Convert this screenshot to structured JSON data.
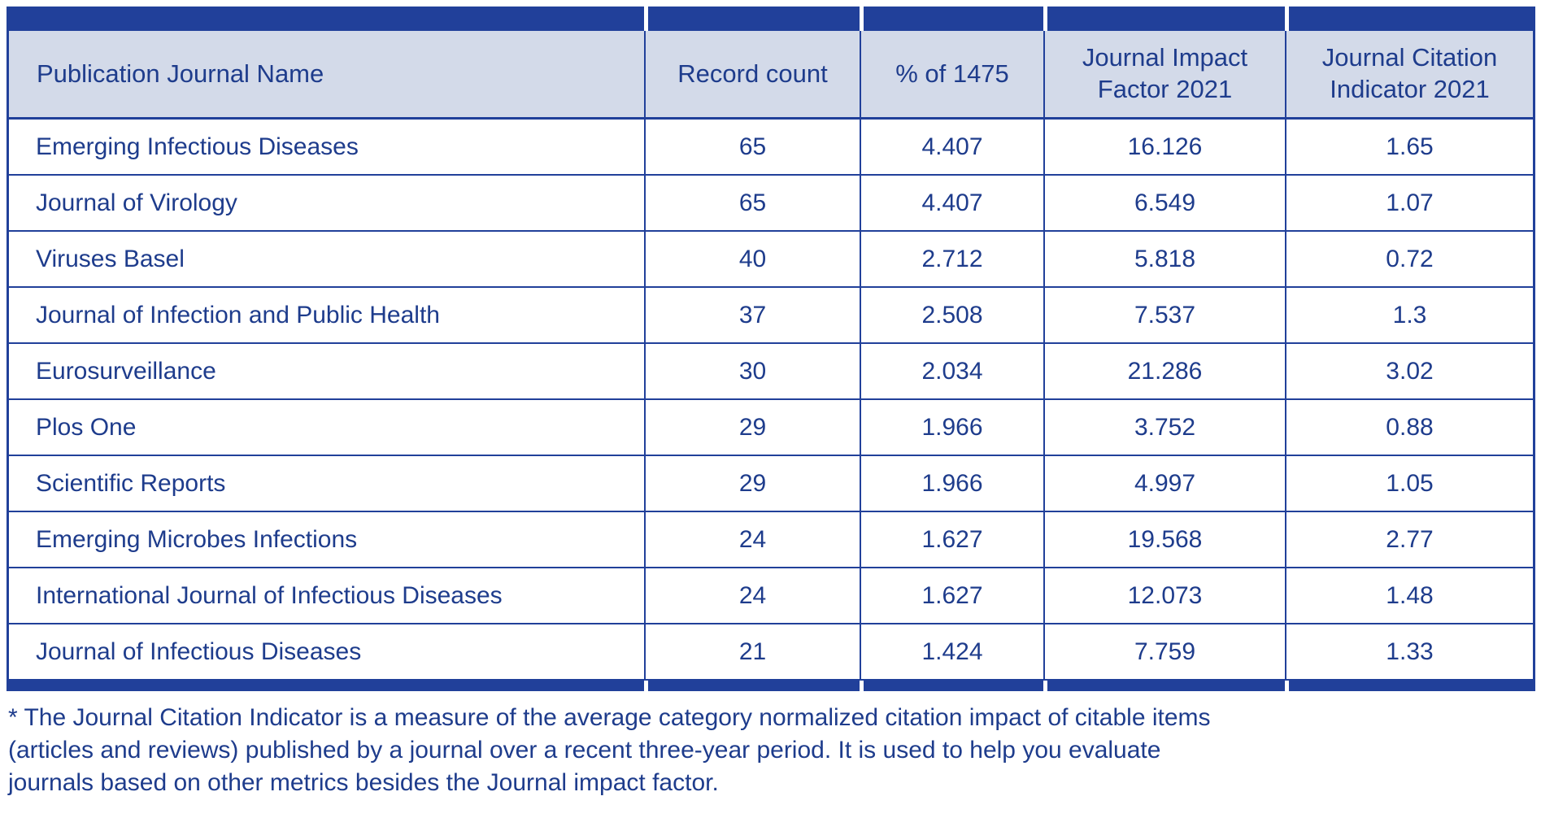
{
  "colors": {
    "accent_navy": "#21409a",
    "header_background": "#d3dae9",
    "text_blue": "#1e3c8c",
    "row_background": "#ffffff"
  },
  "table": {
    "columns": [
      {
        "label": "Publication Journal Name"
      },
      {
        "label": "Record count"
      },
      {
        "label": "% of 1475"
      },
      {
        "label": "Journal Impact Factor 2021"
      },
      {
        "label": "Journal Citation Indicator 2021"
      }
    ],
    "rows": [
      {
        "name": "Emerging Infectious Diseases",
        "record_count": "65",
        "pct_of_1475": "4.407",
        "jif_2021": "16.126",
        "jci_2021": "1.65"
      },
      {
        "name": "Journal of Virology",
        "record_count": "65",
        "pct_of_1475": "4.407",
        "jif_2021": "6.549",
        "jci_2021": "1.07"
      },
      {
        "name": "Viruses Basel",
        "record_count": "40",
        "pct_of_1475": "2.712",
        "jif_2021": "5.818",
        "jci_2021": "0.72"
      },
      {
        "name": "Journal of Infection and Public Health",
        "record_count": "37",
        "pct_of_1475": "2.508",
        "jif_2021": "7.537",
        "jci_2021": "1.3"
      },
      {
        "name": "Eurosurveillance",
        "record_count": "30",
        "pct_of_1475": "2.034",
        "jif_2021": "21.286",
        "jci_2021": "3.02"
      },
      {
        "name": "Plos One",
        "record_count": "29",
        "pct_of_1475": "1.966",
        "jif_2021": "3.752",
        "jci_2021": "0.88"
      },
      {
        "name": "Scientific Reports",
        "record_count": "29",
        "pct_of_1475": "1.966",
        "jif_2021": "4.997",
        "jci_2021": "1.05"
      },
      {
        "name": "Emerging Microbes Infections",
        "record_count": "24",
        "pct_of_1475": "1.627",
        "jif_2021": "19.568",
        "jci_2021": "2.77"
      },
      {
        "name": "International Journal of Infectious Diseases",
        "record_count": "24",
        "pct_of_1475": "1.627",
        "jif_2021": "12.073",
        "jci_2021": "1.48"
      },
      {
        "name": "Journal of Infectious Diseases",
        "record_count": "21",
        "pct_of_1475": "1.424",
        "jif_2021": "7.759",
        "jci_2021": "1.33"
      }
    ]
  },
  "footnote": {
    "lines": [
      "* The Journal Citation Indicator is a measure of the average category normalized citation impact of citable items",
      "(articles and reviews) published by a journal over a recent three-year period. It is used to help you evaluate",
      "journals based on other metrics besides the Journal impact factor."
    ]
  },
  "chart_data": {
    "type": "table",
    "title": "",
    "columns": [
      "Publication Journal Name",
      "Record count",
      "% of 1475",
      "Journal Impact Factor 2021",
      "Journal Citation Indicator 2021"
    ],
    "rows": [
      [
        "Emerging Infectious Diseases",
        65,
        4.407,
        16.126,
        1.65
      ],
      [
        "Journal of Virology",
        65,
        4.407,
        6.549,
        1.07
      ],
      [
        "Viruses Basel",
        40,
        2.712,
        5.818,
        0.72
      ],
      [
        "Journal of Infection and Public Health",
        37,
        2.508,
        7.537,
        1.3
      ],
      [
        "Eurosurveillance",
        30,
        2.034,
        21.286,
        3.02
      ],
      [
        "Plos One",
        29,
        1.966,
        3.752,
        0.88
      ],
      [
        "Scientific Reports",
        29,
        1.966,
        4.997,
        1.05
      ],
      [
        "Emerging Microbes Infections",
        24,
        1.627,
        19.568,
        2.77
      ],
      [
        "International Journal of Infectious Diseases",
        24,
        1.627,
        12.073,
        1.48
      ],
      [
        "Journal of Infectious Diseases",
        21,
        1.424,
        7.759,
        1.33
      ]
    ]
  }
}
